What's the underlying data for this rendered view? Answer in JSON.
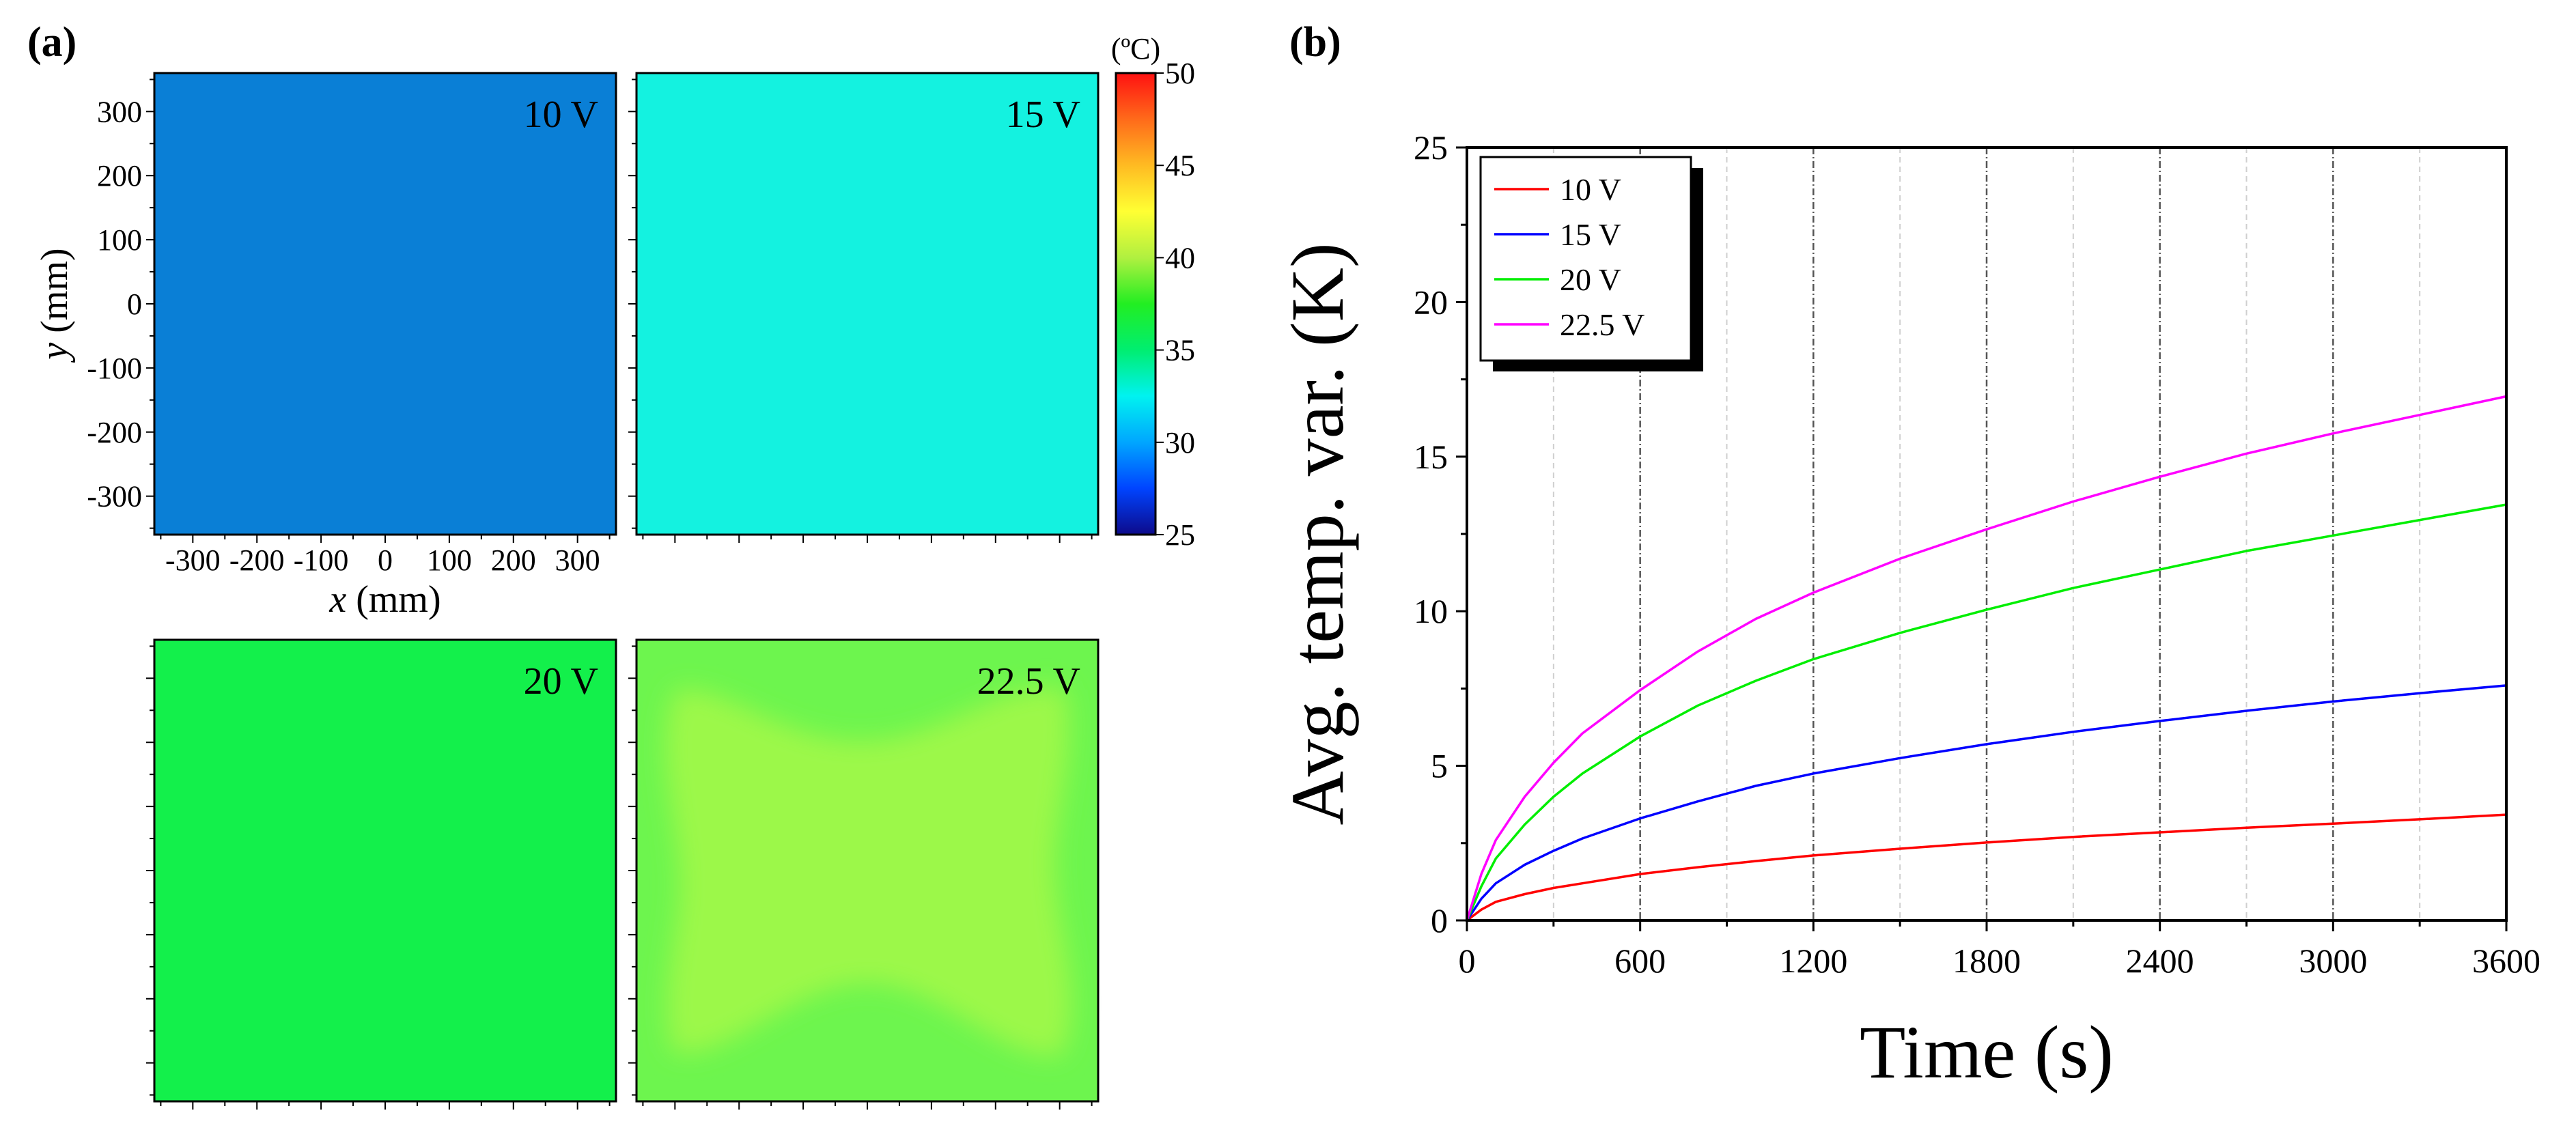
{
  "panel_a": {
    "label": "(a)",
    "maps": [
      {
        "voltage": "10 V",
        "color": "#0a7fd6",
        "pattern": "uniform"
      },
      {
        "voltage": "15 V",
        "color": "#14f2e0",
        "pattern": "uniform"
      },
      {
        "voltage": "20 V",
        "color": "#13f04b",
        "pattern": "uniform"
      },
      {
        "voltage": "22.5 V",
        "color": "#6df54e",
        "inner_color": "#9cf84a",
        "pattern": "edge-cooler"
      }
    ],
    "x_axis": {
      "label_italic": "x",
      "label_rest": " (mm)",
      "ticks": [
        -300,
        -200,
        -100,
        0,
        100,
        200,
        300
      ],
      "range": [
        -360,
        360
      ]
    },
    "y_axis": {
      "label_italic": "y",
      "label_rest": " (mm)",
      "ticks": [
        300,
        200,
        100,
        0,
        -100,
        -200,
        -300
      ],
      "range": [
        -360,
        360
      ]
    },
    "colorbar": {
      "unit": "(ºC)",
      "min": 25,
      "max": 50,
      "ticks": [
        50,
        45,
        40,
        35,
        30,
        25
      ],
      "stops": [
        "#0d0a8a",
        "#0044ff",
        "#00a6ff",
        "#00f2f0",
        "#00ee70",
        "#22ee22",
        "#b0f040",
        "#ffff33",
        "#ffbb22",
        "#ff6a1a",
        "#ff1111"
      ]
    }
  },
  "panel_b": {
    "label": "(b)"
  },
  "chart_data": {
    "type": "line",
    "xlabel": "Time (s)",
    "ylabel": "Avg. temp. var. (K)",
    "xlim": [
      0,
      3600
    ],
    "ylim": [
      0,
      25
    ],
    "xticks": [
      0,
      600,
      1200,
      1800,
      2400,
      3000,
      3600
    ],
    "yticks": [
      0,
      5,
      10,
      15,
      20,
      25
    ],
    "legend_position": "top-left",
    "grid": "vertical-dashed",
    "series": [
      {
        "name": "10 V",
        "color": "#ff0000",
        "x": [
          0,
          50,
          100,
          200,
          300,
          400,
          600,
          800,
          1000,
          1200,
          1500,
          1800,
          2100,
          2400,
          2700,
          3000,
          3300,
          3600
        ],
        "y": [
          0,
          0.35,
          0.6,
          0.85,
          1.05,
          1.2,
          1.5,
          1.72,
          1.92,
          2.1,
          2.32,
          2.52,
          2.7,
          2.85,
          3.0,
          3.13,
          3.27,
          3.42
        ]
      },
      {
        "name": "15 V",
        "color": "#0000ff",
        "x": [
          0,
          50,
          100,
          200,
          300,
          400,
          600,
          800,
          1000,
          1200,
          1500,
          1800,
          2100,
          2400,
          2700,
          3000,
          3300,
          3600
        ],
        "y": [
          0,
          0.7,
          1.2,
          1.8,
          2.25,
          2.65,
          3.3,
          3.85,
          4.35,
          4.75,
          5.25,
          5.7,
          6.1,
          6.45,
          6.78,
          7.08,
          7.35,
          7.6
        ]
      },
      {
        "name": "20 V",
        "color": "#00ee00",
        "x": [
          0,
          50,
          100,
          200,
          300,
          400,
          600,
          800,
          1000,
          1200,
          1500,
          1800,
          2100,
          2400,
          2700,
          3000,
          3300,
          3600
        ],
        "y": [
          0,
          1.1,
          2.0,
          3.1,
          4.0,
          4.75,
          5.95,
          6.95,
          7.75,
          8.45,
          9.3,
          10.05,
          10.75,
          11.35,
          11.95,
          12.45,
          12.95,
          13.45
        ]
      },
      {
        "name": "22.5 V",
        "color": "#ff00ff",
        "x": [
          0,
          50,
          100,
          200,
          300,
          400,
          600,
          800,
          1000,
          1200,
          1500,
          1800,
          2100,
          2400,
          2700,
          3000,
          3300,
          3600
        ],
        "y": [
          0,
          1.5,
          2.6,
          4.0,
          5.1,
          6.05,
          7.45,
          8.7,
          9.75,
          10.6,
          11.7,
          12.65,
          13.55,
          14.35,
          15.1,
          15.75,
          16.35,
          16.95
        ]
      }
    ]
  }
}
